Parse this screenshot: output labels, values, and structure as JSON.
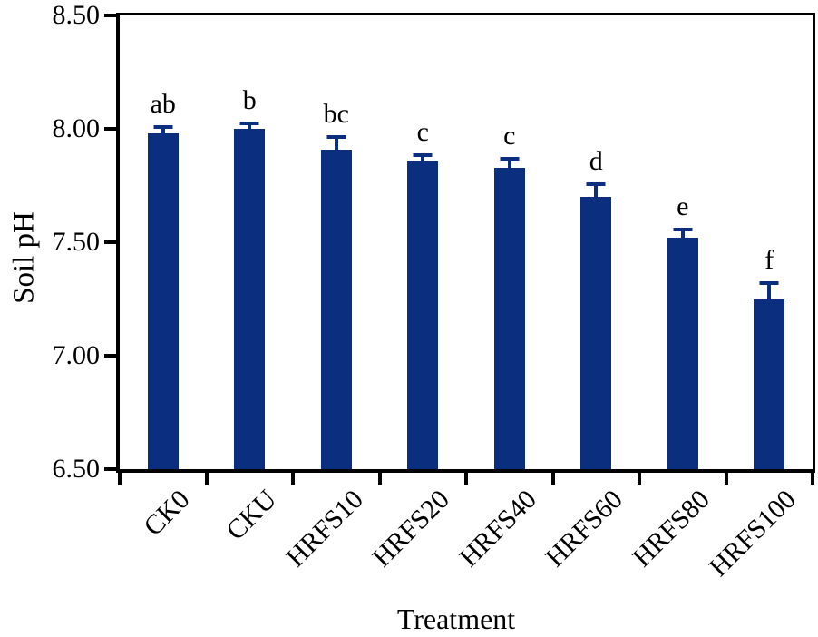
{
  "figure": {
    "background_color": "#ffffff",
    "axis_color": "#000000",
    "text_color": "#000000"
  },
  "chart_data": {
    "type": "bar",
    "title": "",
    "xlabel": "Treatment",
    "ylabel": "Soil pH",
    "categories": [
      "CK0",
      "CKU",
      "HRFS10",
      "HRFS20",
      "HRFS40",
      "HRFS60",
      "HRFS80",
      "HRFS100"
    ],
    "values": [
      7.98,
      8.0,
      7.91,
      7.86,
      7.83,
      7.7,
      7.52,
      7.25
    ],
    "errors": [
      0.03,
      0.025,
      0.055,
      0.025,
      0.04,
      0.055,
      0.035,
      0.07
    ],
    "sig_letters": [
      "ab",
      "b",
      "bc",
      "c",
      "c",
      "d",
      "e",
      "f"
    ],
    "ylim": [
      6.5,
      8.5
    ],
    "yticks": [
      8.5,
      8.0,
      7.5,
      7.0,
      6.5
    ],
    "ytick_decimals": 2,
    "bar_color": "#0b2e7f",
    "error_bar_color": "#0b2e7f",
    "grid": false,
    "legend": null
  }
}
